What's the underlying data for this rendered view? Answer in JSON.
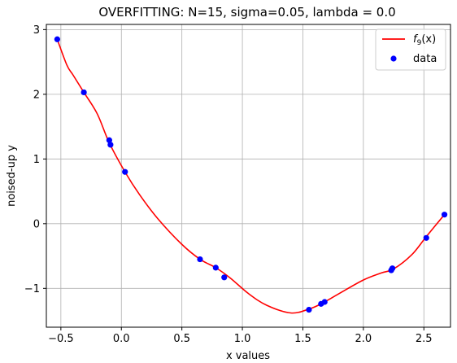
{
  "chart_data": {
    "type": "scatter",
    "title": "OVERFITTING: N=15, sigma=0.05, lambda = 0.0",
    "xlabel": "x values",
    "ylabel": "noised-up y",
    "xlim": [
      -0.62,
      2.72
    ],
    "ylim": [
      -1.6,
      3.08
    ],
    "xticks": [
      -0.5,
      0.0,
      0.5,
      1.0,
      1.5,
      2.0,
      2.5
    ],
    "xtick_labels": [
      "−0.5",
      "0.0",
      "0.5",
      "1.0",
      "1.5",
      "2.0",
      "2.5"
    ],
    "yticks": [
      -1,
      0,
      1,
      2,
      3
    ],
    "ytick_labels": [
      "−1",
      "0",
      "1",
      "2",
      "3"
    ],
    "grid": true,
    "legend_position": "top-right",
    "series": [
      {
        "name": "f_9(x)",
        "legend_main": "f",
        "legend_sub": "9",
        "legend_args": "(x)",
        "kind": "line",
        "color": "#ff0000",
        "x": [
          -0.53,
          -0.45,
          -0.4,
          -0.31,
          -0.2,
          -0.1,
          0.03,
          0.15,
          0.3,
          0.5,
          0.65,
          0.78,
          0.9,
          1.05,
          1.2,
          1.4,
          1.55,
          1.65,
          1.8,
          2.0,
          2.15,
          2.25,
          2.4,
          2.52,
          2.67
        ],
        "y": [
          2.85,
          2.45,
          2.3,
          2.03,
          1.7,
          1.25,
          0.8,
          0.45,
          0.08,
          -0.32,
          -0.55,
          -0.68,
          -0.84,
          -1.08,
          -1.26,
          -1.38,
          -1.32,
          -1.24,
          -1.08,
          -0.87,
          -0.76,
          -0.7,
          -0.48,
          -0.2,
          0.14
        ]
      },
      {
        "name": "data",
        "kind": "scatter",
        "color": "#0000ff",
        "x": [
          -0.53,
          -0.31,
          -0.1,
          -0.09,
          0.03,
          0.65,
          0.78,
          0.85,
          1.55,
          1.65,
          1.68,
          2.23,
          2.24,
          2.52,
          2.67
        ],
        "y": [
          2.85,
          2.03,
          1.29,
          1.22,
          0.8,
          -0.55,
          -0.68,
          -0.83,
          -1.33,
          -1.24,
          -1.21,
          -0.72,
          -0.69,
          -0.22,
          0.14
        ]
      }
    ]
  }
}
